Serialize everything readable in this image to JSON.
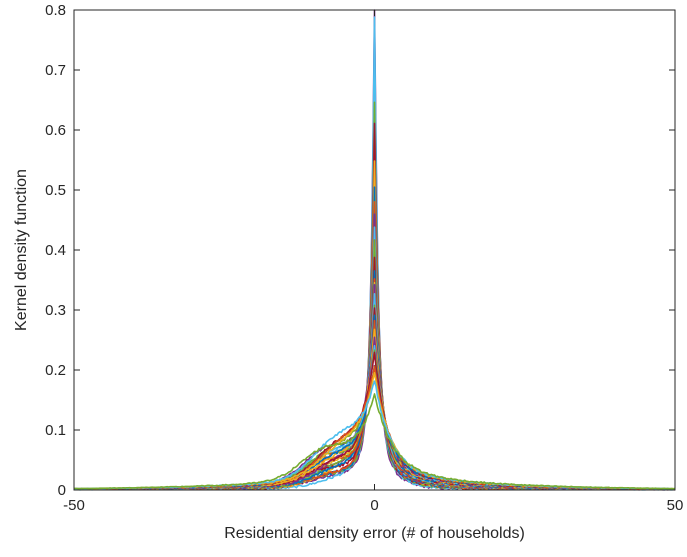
{
  "chart_data": {
    "type": "line",
    "title": "",
    "xlabel": "Residential density error (# of households)",
    "ylabel": "Kernel density function",
    "xlim": [
      -50,
      50
    ],
    "ylim": [
      0,
      0.8
    ],
    "xticks": [
      -50,
      0,
      50
    ],
    "yticks": [
      0,
      0.1,
      0.2,
      0.3,
      0.4,
      0.5,
      0.6,
      0.7,
      0.8
    ],
    "xtick_labels": [
      "-50",
      "0",
      "50"
    ],
    "ytick_labels": [
      "0",
      "0.1",
      "0.2",
      "0.3",
      "0.4",
      "0.5",
      "0.6",
      "0.7",
      "0.8"
    ],
    "grid": false,
    "legend": "none",
    "series_description_count": 30,
    "series": [
      {
        "color": "#7e2f8e",
        "peak": 0.72,
        "width": 0.55,
        "tail": 0.004
      },
      {
        "color": "#4dbeee",
        "peak": 0.66,
        "width": 0.6,
        "tail": 0.004
      },
      {
        "color": "#77ac30",
        "peak": 0.54,
        "width": 0.7,
        "tail": 0.005
      },
      {
        "color": "#a2142f",
        "peak": 0.51,
        "width": 0.75,
        "tail": 0.005
      },
      {
        "color": "#edb120",
        "peak": 0.45,
        "width": 0.8,
        "tail": 0.006
      },
      {
        "color": "#0072bd",
        "peak": 0.42,
        "width": 0.85,
        "tail": 0.006
      },
      {
        "color": "#d95319",
        "peak": 0.4,
        "width": 0.9,
        "tail": 0.006
      },
      {
        "color": "#7e2f8e",
        "peak": 0.38,
        "width": 0.95,
        "tail": 0.007
      },
      {
        "color": "#4dbeee",
        "peak": 0.36,
        "width": 1.0,
        "tail": 0.007
      },
      {
        "color": "#77ac30",
        "peak": 0.34,
        "width": 1.05,
        "tail": 0.007
      },
      {
        "color": "#a2142f",
        "peak": 0.32,
        "width": 1.1,
        "tail": 0.008
      },
      {
        "color": "#0072bd",
        "peak": 0.3,
        "width": 1.15,
        "tail": 0.008
      },
      {
        "color": "#d95319",
        "peak": 0.29,
        "width": 1.2,
        "tail": 0.008
      },
      {
        "color": "#edb120",
        "peak": 0.28,
        "width": 1.25,
        "tail": 0.009
      },
      {
        "color": "#7e2f8e",
        "peak": 0.27,
        "width": 1.3,
        "tail": 0.009
      },
      {
        "color": "#4dbeee",
        "peak": 0.26,
        "width": 1.35,
        "tail": 0.009
      },
      {
        "color": "#77ac30",
        "peak": 0.25,
        "width": 1.4,
        "tail": 0.01
      },
      {
        "color": "#a2142f",
        "peak": 0.24,
        "width": 1.45,
        "tail": 0.01
      },
      {
        "color": "#0072bd",
        "peak": 0.23,
        "width": 1.5,
        "tail": 0.01
      },
      {
        "color": "#d95319",
        "peak": 0.22,
        "width": 1.6,
        "tail": 0.011
      },
      {
        "color": "#edb120",
        "peak": 0.21,
        "width": 1.7,
        "tail": 0.011
      },
      {
        "color": "#7e2f8e",
        "peak": 0.2,
        "width": 1.8,
        "tail": 0.011
      },
      {
        "color": "#4dbeee",
        "peak": 0.19,
        "width": 1.9,
        "tail": 0.012
      },
      {
        "color": "#77ac30",
        "peak": 0.18,
        "width": 2.0,
        "tail": 0.012
      },
      {
        "color": "#a2142f",
        "peak": 0.17,
        "width": 2.1,
        "tail": 0.012
      },
      {
        "color": "#0072bd",
        "peak": 0.16,
        "width": 2.2,
        "tail": 0.013
      },
      {
        "color": "#d95319",
        "peak": 0.15,
        "width": 2.4,
        "tail": 0.013
      },
      {
        "color": "#edb120",
        "peak": 0.14,
        "width": 2.6,
        "tail": 0.014
      },
      {
        "color": "#4dbeee",
        "peak": 0.13,
        "width": 2.8,
        "tail": 0.014
      },
      {
        "color": "#77ac30",
        "peak": 0.12,
        "width": 3.0,
        "tail": 0.015
      }
    ],
    "left_shoulder": {
      "center": -7,
      "height": 0.06,
      "spread": 4
    }
  }
}
